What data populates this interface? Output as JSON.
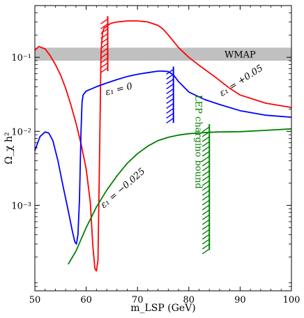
{
  "chart_data": {
    "type": "line",
    "xlabel": "m_LSP (GeV)",
    "ylabel": "Ω_χ h²",
    "xlim": [
      50,
      100
    ],
    "ylim": [
      7e-05,
      0.5
    ],
    "yscale": "log",
    "x_ticks": [
      50,
      60,
      70,
      80,
      90,
      100
    ],
    "x_tick_labels": [
      "50",
      "60",
      "70",
      "80",
      "90",
      "100"
    ],
    "y_ticks": [
      0.001,
      0.01,
      0.1
    ],
    "y_tick_labels": [
      "10⁻³",
      "10⁻²",
      "10⁻¹"
    ],
    "grid": false,
    "band": {
      "label": "WMAP",
      "ymin": 0.09,
      "ymax": 0.135,
      "color": "#c0c0c0"
    },
    "series": [
      {
        "name": "ε₁ = +0.05",
        "color": "#ff0000",
        "x": [
          50.0,
          50.8,
          52,
          53,
          54,
          55,
          56,
          57,
          58,
          59,
          60,
          60.8,
          61.3,
          61.7,
          62.0,
          62.3,
          62.6,
          62.9,
          63.2,
          63.5,
          64,
          64.5,
          65,
          66,
          67,
          68,
          69,
          70,
          72,
          74,
          75,
          76,
          77,
          78,
          80,
          82,
          85,
          88,
          90,
          95,
          100
        ],
        "y": [
          0.125,
          0.14,
          0.13,
          0.105,
          0.08,
          0.058,
          0.038,
          0.023,
          0.013,
          0.0068,
          0.0031,
          0.0011,
          0.00028,
          0.00014,
          0.00013,
          0.00018,
          0.004,
          0.12,
          0.22,
          0.25,
          0.26,
          0.28,
          0.29,
          0.3,
          0.305,
          0.31,
          0.31,
          0.31,
          0.3,
          0.27,
          0.24,
          0.2,
          0.165,
          0.135,
          0.1,
          0.078,
          0.055,
          0.038,
          0.031,
          0.024,
          0.021
        ]
      },
      {
        "name": "ε₁ = 0",
        "color": "#0000ff",
        "x": [
          50.0,
          51,
          52,
          52.7,
          53.5,
          54.5,
          55.5,
          56.5,
          57.3,
          57.8,
          58.1,
          58.4,
          58.7,
          59.0,
          59.2,
          59.4,
          60,
          62,
          64,
          66,
          68,
          70,
          72,
          74,
          75,
          76,
          77,
          78,
          80,
          83,
          86,
          90,
          95,
          100
        ],
        "y": [
          0.0055,
          0.0085,
          0.0098,
          0.0095,
          0.0075,
          0.004,
          0.0018,
          0.00085,
          0.00045,
          0.00032,
          0.0003,
          0.0004,
          0.0012,
          0.01,
          0.025,
          0.031,
          0.035,
          0.04,
          0.045,
          0.05,
          0.055,
          0.059,
          0.062,
          0.065,
          0.065,
          0.064,
          0.058,
          0.047,
          0.034,
          0.027,
          0.023,
          0.019,
          0.0165,
          0.0155
        ]
      },
      {
        "name": "ε₁ = −0.025",
        "color": "#008000",
        "x": [
          56.5,
          58,
          60,
          62,
          64,
          66,
          68,
          70,
          72,
          74,
          76,
          78,
          80,
          82,
          84,
          86,
          90,
          95,
          100
        ],
        "y": [
          0.00016,
          0.00024,
          0.0005,
          0.00095,
          0.0016,
          0.0025,
          0.0037,
          0.005,
          0.0063,
          0.0075,
          0.0083,
          0.0089,
          0.0093,
          0.0095,
          0.0097,
          0.0098,
          0.0099,
          0.0103,
          0.0108
        ]
      }
    ],
    "bounds": [
      {
        "name": "red-cut",
        "color": "#ff0000",
        "x": 64.2,
        "ymin": 0.065,
        "ymax": 0.36,
        "hatch_side": "left"
      },
      {
        "name": "blue-cut",
        "color": "#0000ff",
        "x": 77,
        "ymin": 0.013,
        "ymax": 0.075,
        "hatch_side": "left"
      },
      {
        "name": "lep-cut",
        "color": "#008000",
        "x": 84,
        "ymin": 0.00025,
        "ymax": 0.0125,
        "hatch_side": "left"
      }
    ],
    "annotations": [
      {
        "text": "ε₁ = 0",
        "color": "#000000",
        "x": 66.5,
        "y": 0.034,
        "rotate": -14
      },
      {
        "text": "ε₁ = +0.05",
        "color": "#000000",
        "x": 90.5,
        "y": 0.045,
        "rotate": -33
      },
      {
        "text": "ε₁ = −0.025",
        "color": "#000000",
        "x": 67.5,
        "y": 0.0016,
        "rotate": -41
      },
      {
        "text": "LEP chargino bound",
        "color": "#008000",
        "x": 81.3,
        "y": 0.0072,
        "rotate": 90
      }
    ]
  }
}
